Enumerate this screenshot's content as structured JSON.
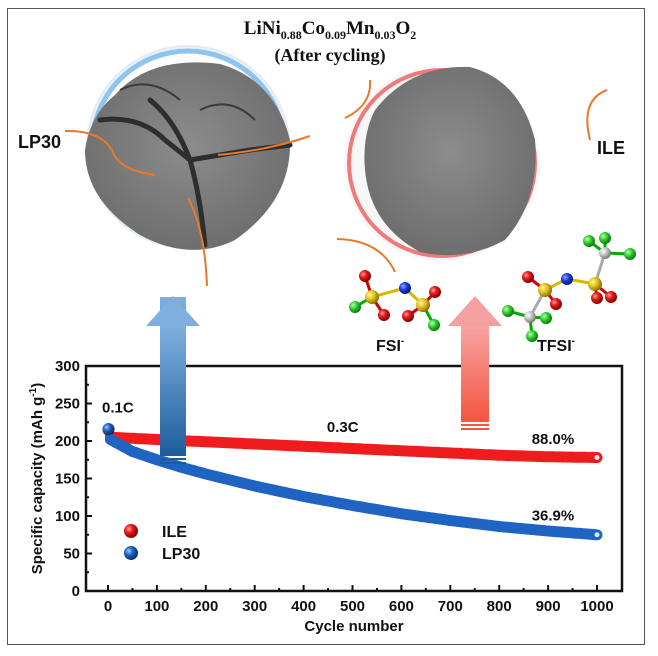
{
  "figure": {
    "title_formula": {
      "parts": [
        {
          "text": "LiNi",
          "sub": "0.88"
        },
        {
          "text": "Co",
          "sub": "0.09"
        },
        {
          "text": "Mn",
          "sub": "0.03"
        },
        {
          "text": "O",
          "sub": "2"
        }
      ]
    },
    "title_line2": "(After cycling)",
    "left_particle_label": "LP30",
    "right_particle_label": "ILE",
    "anion_labels": {
      "fsi": "FSI",
      "tfsi": "TFSI",
      "charge": "-"
    },
    "colors": {
      "ILE": "#ee1c1c",
      "LP30": "#1f63c3",
      "left_ring": "#8ec4ee",
      "right_ring": "#f07a7a",
      "orange_arrow": "#e8792a",
      "particle_gray": "#7d7d7d"
    }
  },
  "chart_data": {
    "type": "scatter",
    "title": "",
    "xlabel": "Cycle number",
    "ylabel": "Specific capacity (mAh g",
    "ylabel_sup": "-1",
    "ylabel_close": ")",
    "xlim": [
      0,
      1000
    ],
    "ylim": [
      0,
      300
    ],
    "xticks": [
      0,
      100,
      200,
      300,
      400,
      500,
      600,
      700,
      800,
      900,
      1000
    ],
    "yticks": [
      0,
      50,
      100,
      150,
      200,
      250,
      300
    ],
    "grid": false,
    "legend_position": "bottom-left",
    "annotations": [
      {
        "text": "0.1C",
        "x": 10,
        "y": 238
      },
      {
        "text": "0.3C",
        "x": 480,
        "y": 212
      },
      {
        "text": "88.0%",
        "x": 910,
        "y": 196
      },
      {
        "text": "36.9%",
        "x": 910,
        "y": 94
      }
    ],
    "series": [
      {
        "name": "ILE",
        "first_cycle": {
          "x": 1,
          "y": 215
        },
        "x": [
          1,
          5,
          100,
          200,
          300,
          400,
          500,
          600,
          700,
          800,
          900,
          1000
        ],
        "values": [
          215,
          205,
          202,
          199,
          196,
          193,
          190,
          187,
          184,
          181,
          179,
          178
        ],
        "retention": "88.0%"
      },
      {
        "name": "LP30",
        "first_cycle": {
          "x": 1,
          "y": 216
        },
        "x": [
          1,
          5,
          50,
          100,
          150,
          200,
          300,
          400,
          500,
          600,
          700,
          800,
          900,
          1000
        ],
        "values": [
          216,
          202,
          186,
          175,
          165,
          156,
          140,
          126,
          114,
          103,
          94,
          86,
          80,
          75
        ],
        "retention": "36.9%"
      }
    ]
  }
}
